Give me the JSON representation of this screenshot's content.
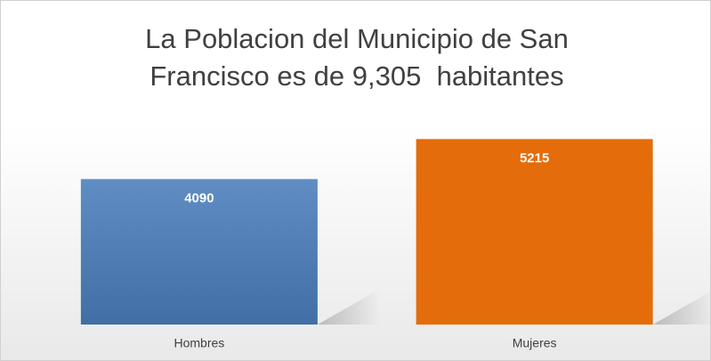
{
  "chart_data": {
    "type": "bar",
    "title": "La Poblacion del Municipio de San Francisco es de 9,305  habitantes",
    "categories": [
      "Hombres",
      "Mujeres"
    ],
    "values": [
      4090,
      5215
    ],
    "colors": [
      "#4a7ebb",
      "#e46c0a"
    ],
    "ylim": [
      0,
      6000
    ]
  }
}
